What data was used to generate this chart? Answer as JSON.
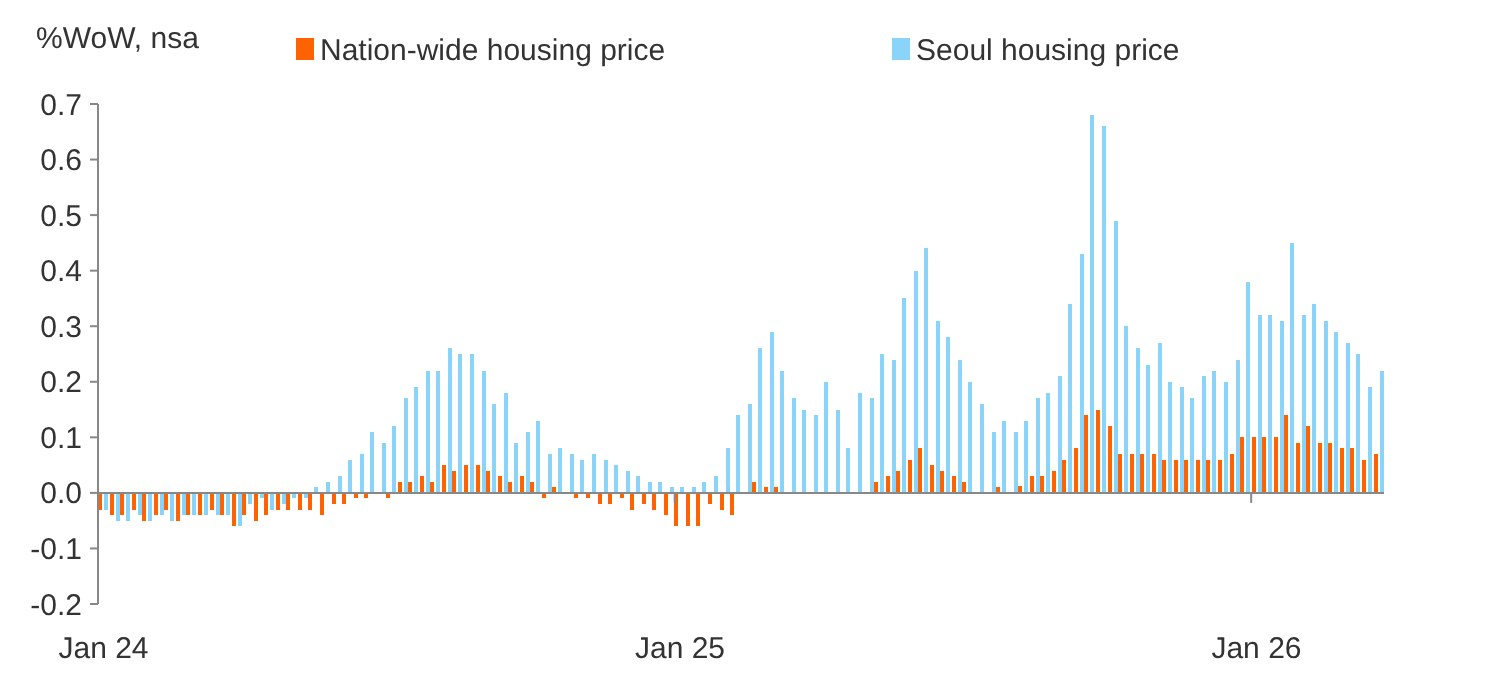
{
  "chart_data": {
    "type": "bar",
    "ylabel": "%WoW, nsa",
    "categories": [
      "Jan 24",
      null,
      null,
      null,
      null,
      null,
      null,
      null,
      null,
      null,
      null,
      null,
      null,
      null,
      null,
      null,
      null,
      null,
      null,
      null,
      null,
      null,
      null,
      null,
      null,
      null,
      null,
      null,
      null,
      null,
      null,
      null,
      null,
      null,
      null,
      null,
      null,
      null,
      null,
      null,
      null,
      null,
      null,
      null,
      null,
      null,
      null,
      null,
      null,
      null,
      null,
      null,
      "Jan 25",
      null,
      null,
      null,
      null,
      null,
      null,
      null,
      null,
      null,
      null,
      null,
      null,
      null,
      null,
      null,
      null,
      null,
      null,
      null,
      null,
      null,
      null,
      null,
      null,
      null,
      null,
      null,
      null,
      null,
      null,
      null,
      null,
      null,
      null,
      null,
      null,
      null,
      null,
      null,
      null,
      null,
      null,
      null,
      null,
      null,
      null,
      null,
      null,
      null,
      null,
      null,
      "Jan 26",
      null,
      null,
      null,
      null,
      null,
      null,
      null,
      null,
      null,
      null,
      null
    ],
    "series": [
      {
        "name": "Nation-wide housing price",
        "color": "#ff6200",
        "values": [
          -0.03,
          -0.04,
          -0.04,
          -0.03,
          -0.05,
          -0.04,
          -0.03,
          -0.05,
          -0.04,
          -0.04,
          -0.03,
          -0.04,
          -0.06,
          -0.04,
          -0.05,
          -0.04,
          -0.03,
          -0.03,
          -0.03,
          -0.03,
          -0.04,
          -0.02,
          -0.02,
          -0.01,
          -0.01,
          0,
          -0.01,
          0.02,
          0.02,
          0.03,
          0.02,
          0.05,
          0.04,
          0.05,
          0.05,
          0.04,
          0.03,
          0.02,
          0.03,
          0.02,
          -0.01,
          0.01,
          0,
          -0.01,
          -0.01,
          -0.02,
          -0.02,
          -0.01,
          -0.03,
          -0.02,
          -0.03,
          -0.04,
          -0.06,
          -0.06,
          -0.06,
          -0.02,
          -0.03,
          -0.04,
          0,
          0.02,
          0.01,
          0.01,
          0,
          0,
          0,
          0,
          0,
          0,
          0,
          0,
          0.02,
          0.03,
          0.04,
          0.06,
          0.08,
          0.05,
          0.04,
          0.03,
          0.02,
          0,
          0,
          0.01,
          0,
          0.012,
          0.03,
          0.03,
          0.04,
          0.06,
          0.08,
          0.14,
          0.15,
          0.12,
          0.07,
          0.07,
          0.07,
          0.07,
          0.06,
          0.06,
          0.06,
          0.06,
          0.06,
          0.06,
          0.07,
          0.1,
          0.1,
          0.1,
          0.1,
          0.14,
          0.09,
          0.12,
          0.09,
          0.09,
          0.08,
          0.08,
          0.06,
          0.07
        ]
      },
      {
        "name": "Seoul housing price",
        "color": "#89d4f8",
        "values": [
          -0.03,
          -0.05,
          -0.05,
          -0.04,
          -0.05,
          -0.04,
          -0.05,
          -0.04,
          -0.04,
          -0.04,
          -0.04,
          -0.04,
          -0.06,
          -0.02,
          -0.01,
          -0.03,
          -0.02,
          -0.01,
          -0.01,
          0.01,
          0.02,
          0.03,
          0.06,
          0.07,
          0.11,
          0.09,
          0.12,
          0.17,
          0.19,
          0.22,
          0.22,
          0.26,
          0.25,
          0.25,
          0.22,
          0.16,
          0.18,
          0.09,
          0.11,
          0.13,
          0.07,
          0.08,
          0.07,
          0.06,
          0.07,
          0.06,
          0.05,
          0.04,
          0.03,
          0.02,
          0.02,
          0.01,
          0.01,
          0.01,
          0.02,
          0.03,
          0.08,
          0.14,
          0.16,
          0.26,
          0.29,
          0.22,
          0.17,
          0.15,
          0.14,
          0.2,
          0.15,
          0.08,
          0.18,
          0.17,
          0.25,
          0.24,
          0.35,
          0.4,
          0.44,
          0.31,
          0.28,
          0.24,
          0.2,
          0.16,
          0.11,
          0.13,
          0.11,
          0.13,
          0.17,
          0.18,
          0.21,
          0.34,
          0.43,
          0.68,
          0.66,
          0.49,
          0.3,
          0.26,
          0.23,
          0.27,
          0.2,
          0.19,
          0.17,
          0.21,
          0.22,
          0.2,
          0.24,
          0.38,
          0.32,
          0.32,
          0.31,
          0.45,
          0.32,
          0.34,
          0.31,
          0.29,
          0.27,
          0.25,
          0.19,
          0.22
        ]
      }
    ],
    "ylim": [
      -0.2,
      0.7
    ],
    "yticks": [
      {
        "value": -0.2,
        "label": "-0.2"
      },
      {
        "value": -0.1,
        "label": "-0.1"
      },
      {
        "value": 0,
        "label": "0.0"
      },
      {
        "value": 0.1,
        "label": "0.1"
      },
      {
        "value": 0.2,
        "label": "0.2"
      },
      {
        "value": 0.3,
        "label": "0.3"
      },
      {
        "value": 0.4,
        "label": "0.4"
      },
      {
        "value": 0.5,
        "label": "0.5"
      },
      {
        "value": 0.6,
        "label": "0.6"
      },
      {
        "value": 0.7,
        "label": "0.7"
      }
    ],
    "legend": "top"
  }
}
